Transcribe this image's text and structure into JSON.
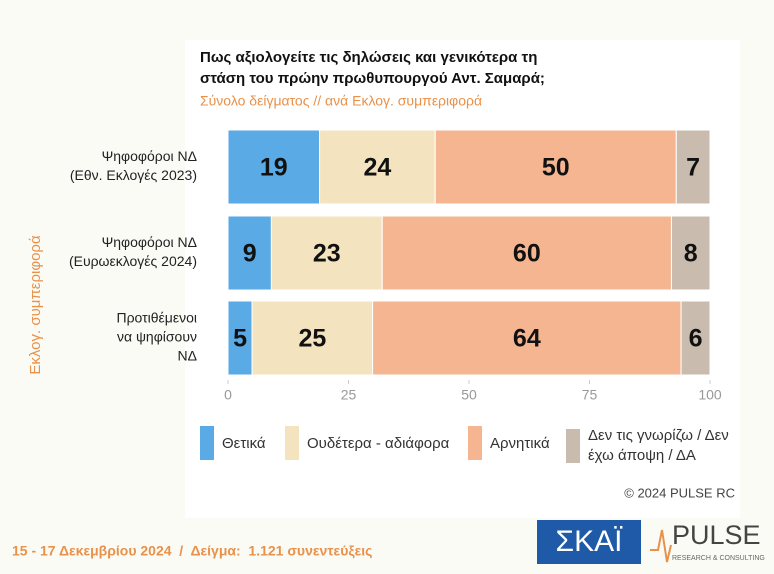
{
  "chart_data": {
    "type": "stacked_barh",
    "title": [
      "Πως αξιολογείτε τις δηλώσεις και γενικότερα τη",
      "στάση του πρώην πρωθυπουργού Αντ. Σαμαρά;"
    ],
    "subtitle": "Σύνολο δείγματος // ανά Εκλογ. συμπεριφορά",
    "y_label": "Εκλογ. συμπεριφορά",
    "categories": [
      [
        "Ψηφοφόροι ΝΔ",
        "(Εθν. Εκλογές 2023)"
      ],
      [
        "Ψηφοφόροι ΝΔ",
        "(Ευρωεκλογές 2024)"
      ],
      [
        "Προτιθέμενοι",
        "να ψηφίσουν",
        "ΝΔ"
      ]
    ],
    "series": [
      {
        "name": "Θετικά",
        "color": "#5aaae6",
        "values": [
          19,
          9,
          5
        ]
      },
      {
        "name": "Ουδέτερα - αδιάφορα",
        "color": "#f3e4bf",
        "values": [
          24,
          23,
          25
        ]
      },
      {
        "name": "Αρνητικά",
        "color": "#f5b591",
        "values": [
          50,
          60,
          64
        ]
      },
      {
        "name": "Δεν τις γνωρίζω / Δεν έχω άποψη / ΔΑ",
        "color": "#c9bcae",
        "values": [
          7,
          8,
          6
        ]
      }
    ],
    "xlim": [
      0,
      100
    ],
    "xticks": [
      0,
      25,
      50,
      75,
      100
    ],
    "grid": false,
    "legend": "bottom"
  },
  "copyright": "© 2024 PULSE RC",
  "footer": "15 - 17 Δεκεμβρίου 2024  /  Δείγμα:  1.121 συνεντεύξεις",
  "logos": {
    "skai": "ΣΚΑΪ",
    "pulse": "PULSE",
    "pulse_sub": "RESEARCH & CONSULTING"
  }
}
